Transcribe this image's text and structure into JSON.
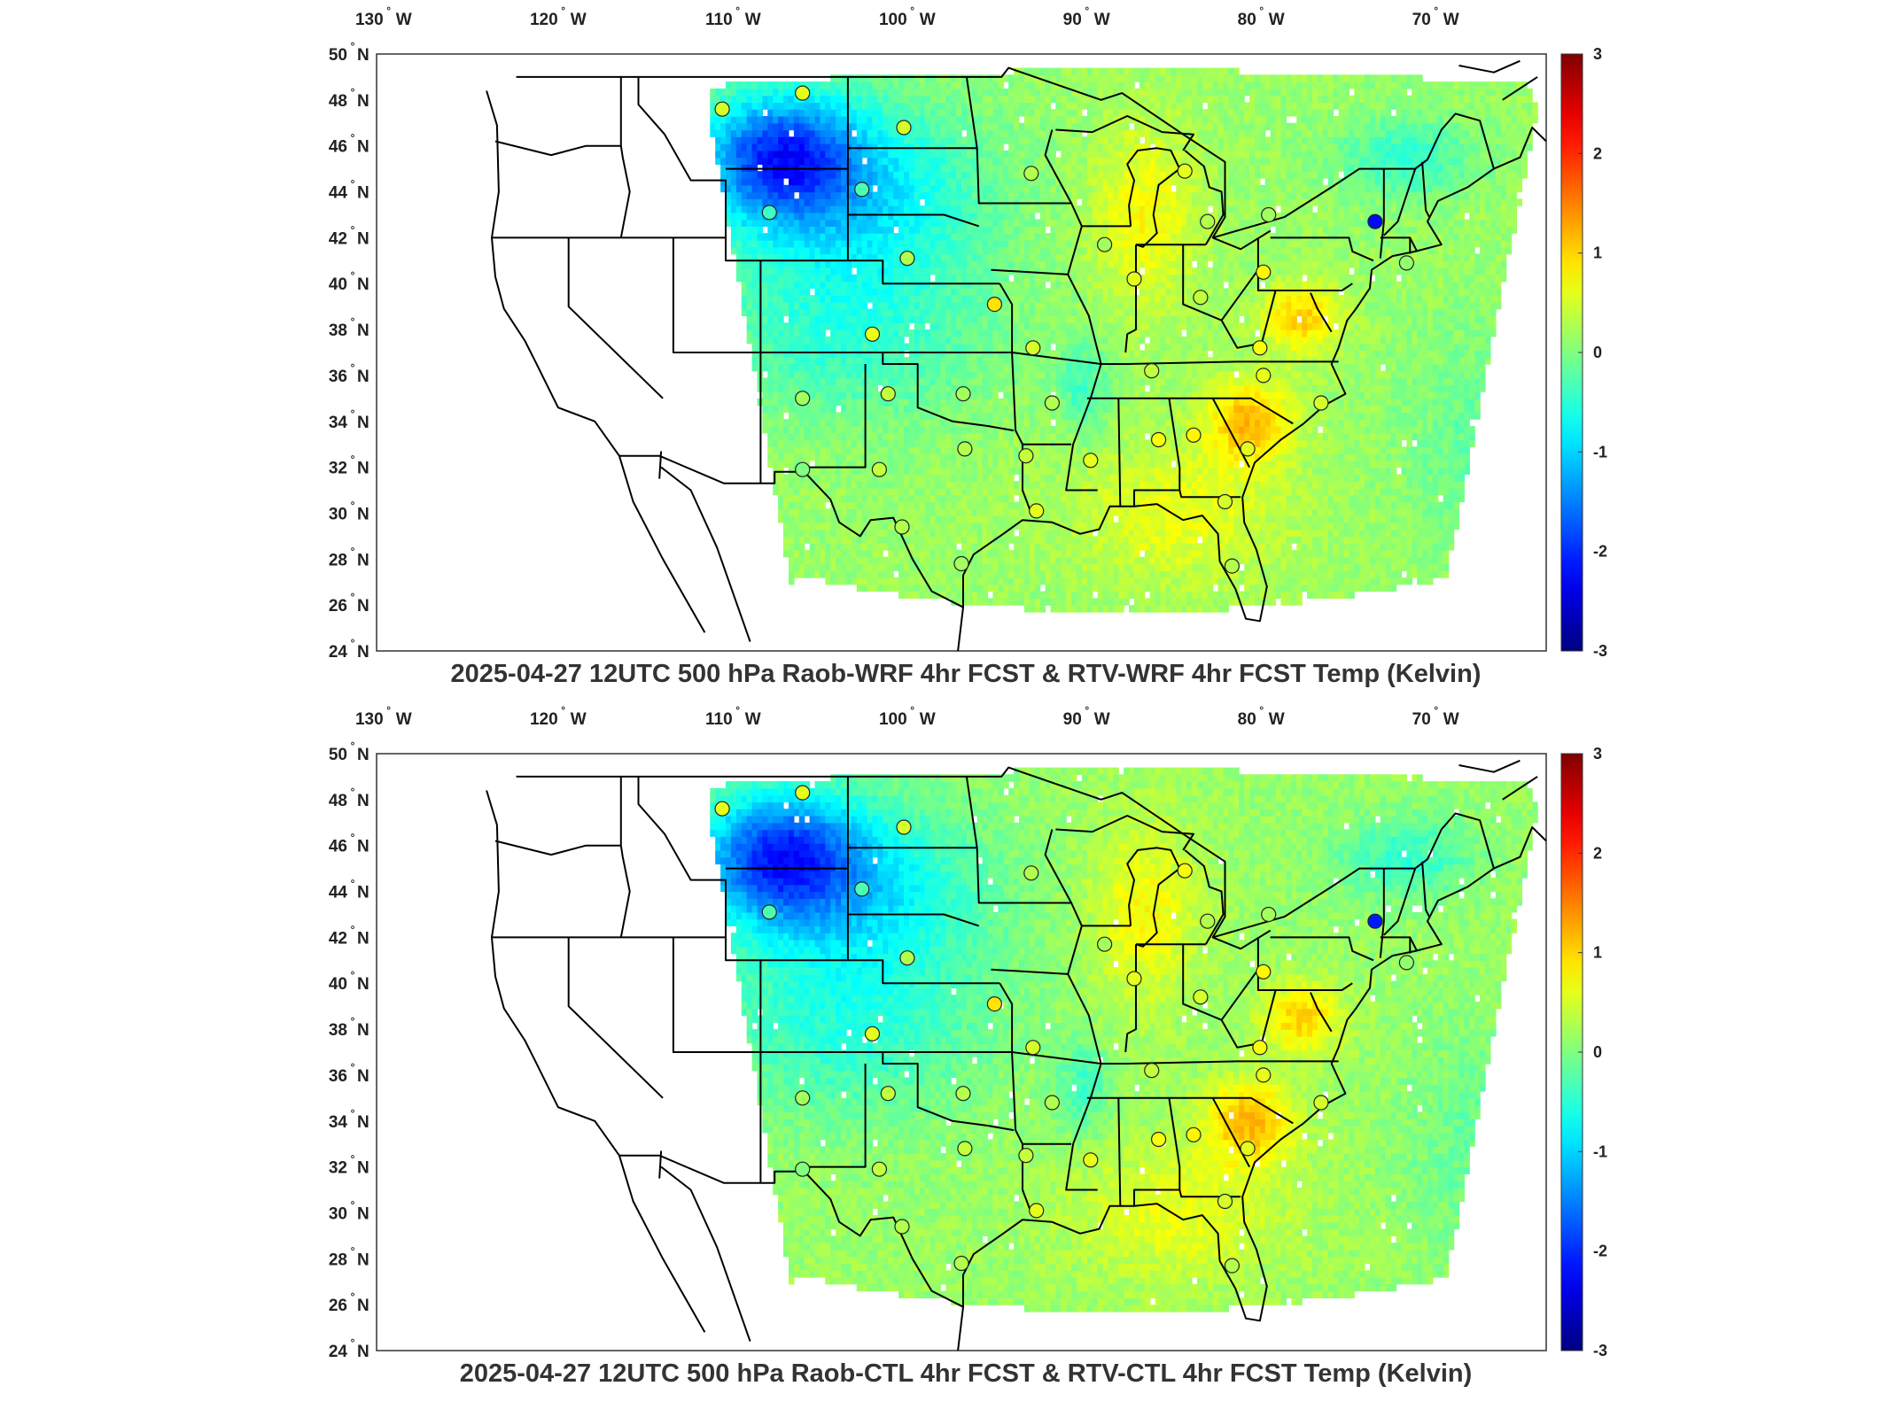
{
  "panels": [
    {
      "title": "2025-04-27 12UTC 500 hPa Raob-WRF 4hr FCST & RTV-WRF 4hr FCST Temp (Kelvin)",
      "stations": [
        {
          "lon": -111.2,
          "lat": 47.6,
          "diff": 0.5
        },
        {
          "lon": -106.6,
          "lat": 48.3,
          "diff": 0.6
        },
        {
          "lon": -100.8,
          "lat": 46.8,
          "diff": 0.5
        },
        {
          "lon": -108.5,
          "lat": 43.1,
          "diff": -0.4
        },
        {
          "lon": -103.2,
          "lat": 44.1,
          "diff": -0.3
        },
        {
          "lon": -93.5,
          "lat": 44.8,
          "diff": 0.3
        },
        {
          "lon": -84.7,
          "lat": 44.9,
          "diff": 0.6
        },
        {
          "lon": -89.3,
          "lat": 41.7,
          "diff": 0.2
        },
        {
          "lon": -83.4,
          "lat": 42.7,
          "diff": 0.3
        },
        {
          "lon": -79.9,
          "lat": 43.0,
          "diff": 0.2
        },
        {
          "lon": -73.8,
          "lat": 42.7,
          "diff": -2.2
        },
        {
          "lon": -72.0,
          "lat": 40.9,
          "diff": 0.1
        },
        {
          "lon": -100.6,
          "lat": 41.1,
          "diff": 0.3
        },
        {
          "lon": -87.6,
          "lat": 40.2,
          "diff": 0.6
        },
        {
          "lon": -83.8,
          "lat": 39.4,
          "diff": 0.4
        },
        {
          "lon": -80.2,
          "lat": 40.5,
          "diff": 0.8
        },
        {
          "lon": -95.6,
          "lat": 39.1,
          "diff": 0.9
        },
        {
          "lon": -102.6,
          "lat": 37.8,
          "diff": 0.6
        },
        {
          "lon": -93.4,
          "lat": 37.2,
          "diff": 0.5
        },
        {
          "lon": -80.4,
          "lat": 37.2,
          "diff": 0.7
        },
        {
          "lon": -86.6,
          "lat": 36.2,
          "diff": 0.4
        },
        {
          "lon": -80.2,
          "lat": 36.0,
          "diff": 0.6
        },
        {
          "lon": -106.6,
          "lat": 35.0,
          "diff": 0.2
        },
        {
          "lon": -101.7,
          "lat": 35.2,
          "diff": 0.4
        },
        {
          "lon": -97.4,
          "lat": 35.2,
          "diff": 0.2
        },
        {
          "lon": -92.3,
          "lat": 34.8,
          "diff": 0.3
        },
        {
          "lon": -76.9,
          "lat": 34.8,
          "diff": 0.5
        },
        {
          "lon": -106.6,
          "lat": 31.9,
          "diff": 0.0
        },
        {
          "lon": -102.2,
          "lat": 31.9,
          "diff": 0.4
        },
        {
          "lon": -97.3,
          "lat": 32.8,
          "diff": 0.3
        },
        {
          "lon": -93.8,
          "lat": 32.5,
          "diff": 0.4
        },
        {
          "lon": -90.1,
          "lat": 32.3,
          "diff": 0.6
        },
        {
          "lon": -86.2,
          "lat": 33.2,
          "diff": 0.7
        },
        {
          "lon": -84.2,
          "lat": 33.4,
          "diff": 0.8
        },
        {
          "lon": -81.1,
          "lat": 32.8,
          "diff": 0.6
        },
        {
          "lon": -100.9,
          "lat": 29.4,
          "diff": 0.3
        },
        {
          "lon": -97.5,
          "lat": 27.8,
          "diff": 0.2
        },
        {
          "lon": -93.2,
          "lat": 30.1,
          "diff": 0.6
        },
        {
          "lon": -82.4,
          "lat": 30.5,
          "diff": 0.5
        },
        {
          "lon": -82.0,
          "lat": 27.7,
          "diff": 0.3
        }
      ]
    },
    {
      "title": "2025-04-27 12UTC 500 hPa Raob-CTL 4hr FCST & RTV-CTL 4hr FCST Temp (Kelvin)",
      "stations": [
        {
          "lon": -111.2,
          "lat": 47.6,
          "diff": 0.6
        },
        {
          "lon": -106.6,
          "lat": 48.3,
          "diff": 0.6
        },
        {
          "lon": -100.8,
          "lat": 46.8,
          "diff": 0.5
        },
        {
          "lon": -108.5,
          "lat": 43.1,
          "diff": -0.3
        },
        {
          "lon": -103.2,
          "lat": 44.1,
          "diff": -0.3
        },
        {
          "lon": -93.5,
          "lat": 44.8,
          "diff": 0.3
        },
        {
          "lon": -84.7,
          "lat": 44.9,
          "diff": 0.7
        },
        {
          "lon": -89.3,
          "lat": 41.7,
          "diff": 0.2
        },
        {
          "lon": -83.4,
          "lat": 42.7,
          "diff": 0.3
        },
        {
          "lon": -79.9,
          "lat": 43.0,
          "diff": 0.2
        },
        {
          "lon": -73.8,
          "lat": 42.7,
          "diff": -2.1
        },
        {
          "lon": -72.0,
          "lat": 40.9,
          "diff": 0.1
        },
        {
          "lon": -100.6,
          "lat": 41.1,
          "diff": 0.3
        },
        {
          "lon": -87.6,
          "lat": 40.2,
          "diff": 0.6
        },
        {
          "lon": -83.8,
          "lat": 39.4,
          "diff": 0.5
        },
        {
          "lon": -80.2,
          "lat": 40.5,
          "diff": 0.8
        },
        {
          "lon": -95.6,
          "lat": 39.1,
          "diff": 0.9
        },
        {
          "lon": -102.6,
          "lat": 37.8,
          "diff": 0.6
        },
        {
          "lon": -93.4,
          "lat": 37.2,
          "diff": 0.5
        },
        {
          "lon": -80.4,
          "lat": 37.2,
          "diff": 0.7
        },
        {
          "lon": -86.6,
          "lat": 36.2,
          "diff": 0.4
        },
        {
          "lon": -80.2,
          "lat": 36.0,
          "diff": 0.6
        },
        {
          "lon": -106.6,
          "lat": 35.0,
          "diff": 0.2
        },
        {
          "lon": -101.7,
          "lat": 35.2,
          "diff": 0.4
        },
        {
          "lon": -97.4,
          "lat": 35.2,
          "diff": 0.3
        },
        {
          "lon": -92.3,
          "lat": 34.8,
          "diff": 0.3
        },
        {
          "lon": -76.9,
          "lat": 34.8,
          "diff": 0.5
        },
        {
          "lon": -106.6,
          "lat": 31.9,
          "diff": 0.0
        },
        {
          "lon": -102.2,
          "lat": 31.9,
          "diff": 0.4
        },
        {
          "lon": -97.3,
          "lat": 32.8,
          "diff": 0.4
        },
        {
          "lon": -93.8,
          "lat": 32.5,
          "diff": 0.4
        },
        {
          "lon": -90.1,
          "lat": 32.3,
          "diff": 0.6
        },
        {
          "lon": -86.2,
          "lat": 33.2,
          "diff": 0.7
        },
        {
          "lon": -84.2,
          "lat": 33.4,
          "diff": 0.8
        },
        {
          "lon": -81.1,
          "lat": 32.8,
          "diff": 0.6
        },
        {
          "lon": -100.9,
          "lat": 29.4,
          "diff": 0.3
        },
        {
          "lon": -97.5,
          "lat": 27.8,
          "diff": 0.3
        },
        {
          "lon": -93.2,
          "lat": 30.1,
          "diff": 0.6
        },
        {
          "lon": -82.4,
          "lat": 30.5,
          "diff": 0.5
        },
        {
          "lon": -82.0,
          "lat": 27.7,
          "diff": 0.3
        }
      ]
    }
  ],
  "map": {
    "lon_ticks": [
      "130",
      "120",
      "110",
      "100",
      "90",
      "80",
      "70"
    ],
    "lon_suffix": "W",
    "lat_ticks": [
      "50",
      "48",
      "46",
      "44",
      "42",
      "40",
      "38",
      "36",
      "34",
      "32",
      "30",
      "28",
      "26",
      "24"
    ],
    "lat_suffix": "N",
    "lon_range": [
      -131,
      -64
    ],
    "lat_range": [
      24,
      50
    ]
  },
  "colorbar": {
    "colormap": "jet",
    "min": -3,
    "max": 3,
    "tick_labels": [
      "3",
      "2",
      "1",
      "0",
      "-1",
      "-2",
      "-3"
    ]
  },
  "colors": {
    "land_outline": "#000000",
    "missing": "#ffffff"
  }
}
